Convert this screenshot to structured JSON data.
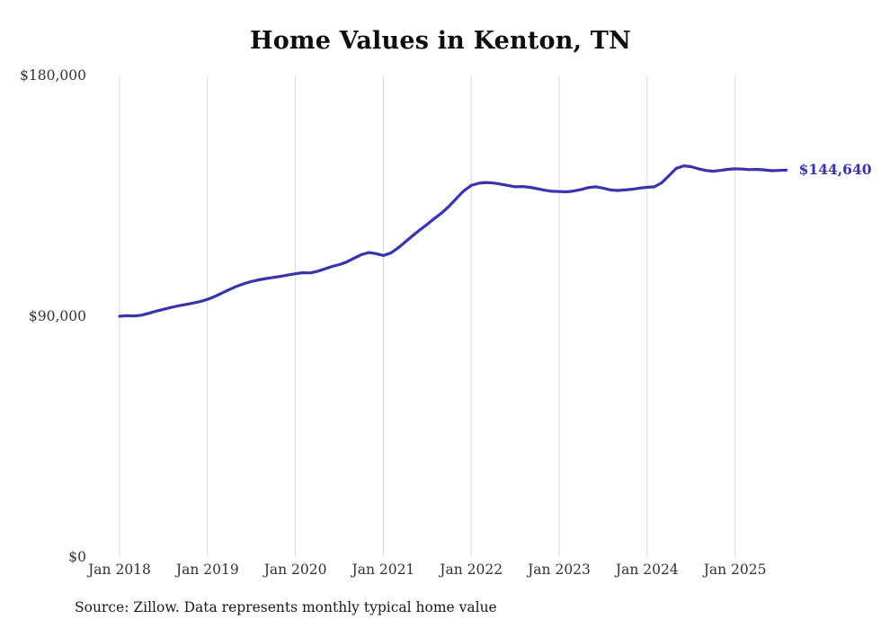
{
  "chart_data": {
    "type": "line",
    "title": "Home Values in Kenton, TN",
    "source": "Source: Zillow. Data represents monthly typical home value",
    "end_label": "$144,640",
    "frequency": "monthly",
    "x_start": "Jan 2018",
    "x_end": "Aug 2025",
    "x_tick_labels": [
      "Jan 2018",
      "Jan 2019",
      "Jan 2020",
      "Jan 2021",
      "Jan 2022",
      "Jan 2023",
      "Jan 2024",
      "Jan 2025"
    ],
    "y_ticks": [
      0,
      90000,
      180000
    ],
    "y_tick_labels": [
      "$0",
      "$90,000",
      "$180,000"
    ],
    "ylim": [
      0,
      180000
    ],
    "grid": "vertical-only",
    "legend": "none",
    "line_color": "#3734ad",
    "grid_color": "#d9d9d9",
    "series": [
      {
        "name": "Typical home value",
        "values": [
          90000,
          90200,
          90100,
          90400,
          91100,
          91900,
          92600,
          93300,
          93900,
          94400,
          94900,
          95500,
          96300,
          97400,
          98700,
          100000,
          101200,
          102200,
          103000,
          103600,
          104100,
          104500,
          104900,
          105400,
          105900,
          106300,
          106200,
          106800,
          107700,
          108600,
          109300,
          110300,
          111700,
          113000,
          113800,
          113400,
          112700,
          113600,
          115500,
          117800,
          120100,
          122300,
          124400,
          126600,
          128700,
          131200,
          134100,
          136900,
          138900,
          139700,
          140000,
          139800,
          139400,
          138900,
          138400,
          138500,
          138200,
          137700,
          137100,
          136700,
          136600,
          136500,
          136800,
          137400,
          138100,
          138400,
          137900,
          137200,
          137000,
          137200,
          137500,
          137900,
          138200,
          138400,
          139900,
          142600,
          145300,
          146200,
          145900,
          145100,
          144500,
          144200,
          144500,
          144900,
          145100,
          145000,
          144800,
          144900,
          144700,
          144400,
          144500,
          144640
        ]
      }
    ]
  }
}
